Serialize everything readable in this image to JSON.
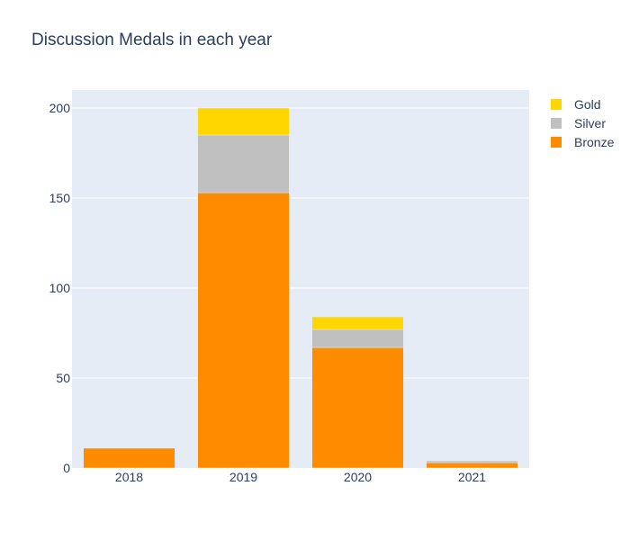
{
  "chart_data": {
    "type": "bar",
    "barmode": "stack",
    "title": "Discussion Medals in each year",
    "xlabel": "",
    "ylabel": "",
    "categories": [
      "2018",
      "2019",
      "2020",
      "2021"
    ],
    "series": [
      {
        "name": "Bronze",
        "values": [
          11,
          153,
          67,
          3
        ],
        "color": "#ff8c00"
      },
      {
        "name": "Silver",
        "values": [
          0,
          32,
          10,
          1
        ],
        "color": "#c0c0c0"
      },
      {
        "name": "Gold",
        "values": [
          0,
          15,
          7,
          0
        ],
        "color": "#ffd700"
      }
    ],
    "ylim": [
      0,
      210
    ],
    "yticks": [
      0,
      50,
      100,
      150,
      200
    ],
    "legend_order": [
      "Gold",
      "Silver",
      "Bronze"
    ],
    "legend_position": "top-right",
    "grid": true,
    "plot_background": "#e5ecf6"
  }
}
